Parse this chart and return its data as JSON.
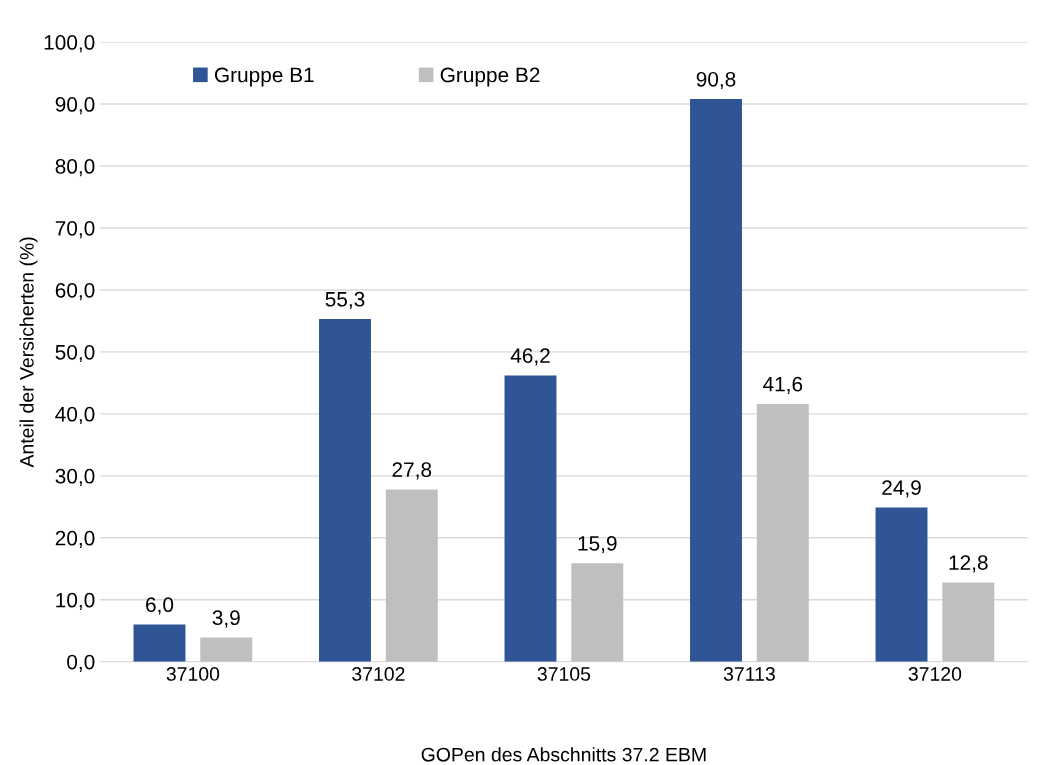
{
  "chart_data": {
    "type": "bar",
    "xlabel": "GOPen des Abschnitts 37.2 EBM",
    "ylabel": "Anteil der Versicherten (%)",
    "categories": [
      "37100",
      "37102",
      "37105",
      "37113",
      "37120"
    ],
    "series": [
      {
        "name": "Gruppe B1",
        "color": "#2f5597",
        "values": [
          6.0,
          55.3,
          46.2,
          90.8,
          24.9
        ],
        "value_labels": [
          "6,0",
          "55,3",
          "46,2",
          "90,8",
          "24,9"
        ]
      },
      {
        "name": "Gruppe B2",
        "color": "#bfbfbf",
        "values": [
          3.9,
          27.8,
          15.9,
          41.6,
          12.8
        ],
        "value_labels": [
          "3,9",
          "27,8",
          "15,9",
          "41,6",
          "12,8"
        ]
      }
    ],
    "ylim": [
      0,
      100
    ],
    "yticks": [
      {
        "value": 0,
        "label": "0,0"
      },
      {
        "value": 10,
        "label": "10,0"
      },
      {
        "value": 20,
        "label": "20,0"
      },
      {
        "value": 30,
        "label": "30,0"
      },
      {
        "value": 40,
        "label": "40,0"
      },
      {
        "value": 50,
        "label": "50,0"
      },
      {
        "value": 60,
        "label": "60,0"
      },
      {
        "value": 70,
        "label": "70,0"
      },
      {
        "value": 80,
        "label": "80,0"
      },
      {
        "value": 90,
        "label": "90,0"
      },
      {
        "value": 100,
        "label": "100,0"
      }
    ],
    "grid": "y",
    "legend": "top left"
  }
}
